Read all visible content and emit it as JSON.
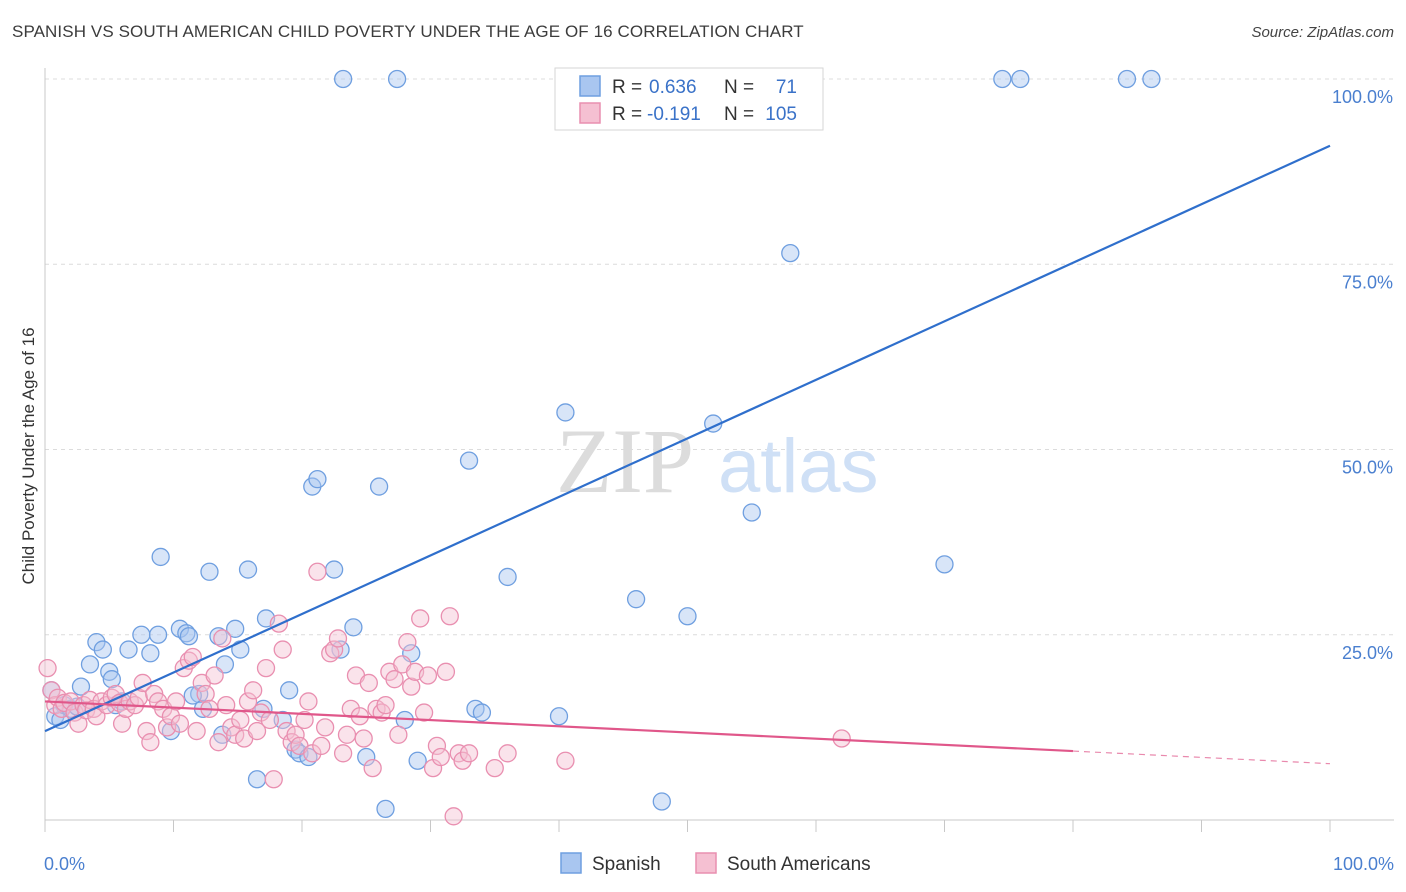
{
  "chart_data": {
    "type": "scatter",
    "title": "SPANISH VS SOUTH AMERICAN CHILD POVERTY UNDER THE AGE OF 16 CORRELATION CHART",
    "source": "Source: ZipAtlas.com",
    "watermark": {
      "zip": "ZIP",
      "atlas": "atlas"
    },
    "xlabel": "",
    "ylabel": "Child Poverty Under the Age of 16",
    "xlim": [
      0,
      100
    ],
    "ylim": [
      0,
      100
    ],
    "x_tick_labels": {
      "min": "0.0%",
      "max": "100.0%"
    },
    "y_ticks": [
      {
        "value": 100,
        "label": "100.0%"
      },
      {
        "value": 75,
        "label": "75.0%"
      },
      {
        "value": 50,
        "label": "50.0%"
      },
      {
        "value": 25,
        "label": "25.0%"
      }
    ],
    "legend": {
      "position": "top-center",
      "rows": [
        {
          "series": "Spanish",
          "r_label": "R =",
          "r_value": "0.636",
          "n_label": "N =",
          "n_value": "71"
        },
        {
          "series": "South Americans",
          "r_label": "R =",
          "r_value": "-0.191",
          "n_label": "N =",
          "n_value": "105"
        }
      ]
    },
    "series": [
      {
        "name": "Spanish",
        "color": "#6f9fe0",
        "fill": "#a9c6f0",
        "trend_color": "#2f6fcc",
        "trend": {
          "x0": 0,
          "y0": 12.0,
          "x1": 100,
          "y1": 91.0
        },
        "points": [
          [
            0.5,
            17.5
          ],
          [
            0.8,
            14
          ],
          [
            1.2,
            13.5
          ],
          [
            1.5,
            15.5
          ],
          [
            2,
            15
          ],
          [
            2.5,
            15.3
          ],
          [
            2.8,
            18
          ],
          [
            3.5,
            21
          ],
          [
            4,
            24
          ],
          [
            4.5,
            23
          ],
          [
            5,
            20
          ],
          [
            5.2,
            19
          ],
          [
            5.5,
            15.5
          ],
          [
            6,
            16
          ],
          [
            6.5,
            23
          ],
          [
            7.5,
            25
          ],
          [
            8.2,
            22.5
          ],
          [
            8.8,
            25
          ],
          [
            9,
            35.5
          ],
          [
            9.8,
            12
          ],
          [
            10.5,
            25.8
          ],
          [
            11,
            25.2
          ],
          [
            11.2,
            24.8
          ],
          [
            12,
            17
          ],
          [
            12.3,
            15
          ],
          [
            12.8,
            33.5
          ],
          [
            13.5,
            24.8
          ],
          [
            13.8,
            11.5
          ],
          [
            14,
            21
          ],
          [
            14.8,
            25.8
          ],
          [
            15.2,
            23
          ],
          [
            15.8,
            33.8
          ],
          [
            16.5,
            5.5
          ],
          [
            17,
            15
          ],
          [
            17.2,
            27.2
          ],
          [
            18.5,
            13.5
          ],
          [
            19,
            17.5
          ],
          [
            19.5,
            9.5
          ],
          [
            19.8,
            9
          ],
          [
            20.5,
            8.5
          ],
          [
            20.8,
            45
          ],
          [
            21.2,
            46
          ],
          [
            22.5,
            33.8
          ],
          [
            23,
            23
          ],
          [
            24,
            26
          ],
          [
            25,
            8.5
          ],
          [
            26,
            45
          ],
          [
            26.5,
            1.5
          ],
          [
            28,
            13.5
          ],
          [
            28.5,
            22.5
          ],
          [
            29,
            8
          ],
          [
            33,
            48.5
          ],
          [
            33.5,
            15
          ],
          [
            34,
            14.5
          ],
          [
            36,
            32.8
          ],
          [
            40,
            14
          ],
          [
            40.5,
            55
          ],
          [
            46,
            29.8
          ],
          [
            48,
            2.5
          ],
          [
            50,
            27.5
          ],
          [
            52,
            53.5
          ],
          [
            55,
            41.5
          ],
          [
            58,
            76.5
          ],
          [
            70,
            34.5
          ],
          [
            23.2,
            100
          ],
          [
            27.4,
            100
          ],
          [
            74.5,
            100
          ],
          [
            75.9,
            100
          ],
          [
            84.2,
            100
          ],
          [
            86.1,
            100
          ],
          [
            11.5,
            16.8
          ]
        ]
      },
      {
        "name": "South Americans",
        "color": "#e98fb0",
        "fill": "#f5c0d2",
        "trend_color": "#e0578a",
        "trend": {
          "x0": 0,
          "y0": 16.0,
          "x1": 80,
          "y1": 9.3,
          "dashed_to_x": 100,
          "dashed_to_y": 7.6
        },
        "points": [
          [
            0.2,
            20.5
          ],
          [
            0.5,
            17.5
          ],
          [
            0.8,
            15.5
          ],
          [
            1,
            16.5
          ],
          [
            1.3,
            15
          ],
          [
            1.5,
            15.8
          ],
          [
            2,
            16
          ],
          [
            2.3,
            14.5
          ],
          [
            2.6,
            13
          ],
          [
            3,
            15.5
          ],
          [
            3.2,
            14.8
          ],
          [
            3.5,
            16.2
          ],
          [
            3.8,
            15
          ],
          [
            4,
            14
          ],
          [
            4.4,
            16
          ],
          [
            4.8,
            15.5
          ],
          [
            5.2,
            16.5
          ],
          [
            5.5,
            17
          ],
          [
            5.8,
            15.8
          ],
          [
            6,
            13
          ],
          [
            6.3,
            15
          ],
          [
            6.6,
            16
          ],
          [
            7,
            15.5
          ],
          [
            7.3,
            16.5
          ],
          [
            7.6,
            18.5
          ],
          [
            7.9,
            12
          ],
          [
            8.2,
            10.5
          ],
          [
            8.5,
            17
          ],
          [
            8.8,
            16
          ],
          [
            9.2,
            15
          ],
          [
            9.5,
            12.5
          ],
          [
            9.8,
            14
          ],
          [
            10.2,
            16
          ],
          [
            10.5,
            13
          ],
          [
            10.8,
            20.5
          ],
          [
            11.2,
            21.5
          ],
          [
            11.5,
            22
          ],
          [
            11.8,
            12
          ],
          [
            12.2,
            18.5
          ],
          [
            12.5,
            17
          ],
          [
            12.8,
            15
          ],
          [
            13.2,
            19.5
          ],
          [
            13.5,
            10.5
          ],
          [
            13.8,
            24.5
          ],
          [
            14.1,
            15.5
          ],
          [
            14.5,
            12.5
          ],
          [
            14.8,
            11.5
          ],
          [
            15.2,
            13.5
          ],
          [
            15.5,
            11
          ],
          [
            15.8,
            16
          ],
          [
            16.2,
            17.5
          ],
          [
            16.5,
            12
          ],
          [
            16.8,
            14.5
          ],
          [
            17.2,
            20.5
          ],
          [
            17.5,
            13.5
          ],
          [
            17.8,
            5.5
          ],
          [
            18.2,
            26.5
          ],
          [
            18.5,
            23
          ],
          [
            18.8,
            12
          ],
          [
            19.2,
            10.5
          ],
          [
            19.5,
            11.5
          ],
          [
            19.8,
            10
          ],
          [
            20.2,
            13.5
          ],
          [
            20.5,
            16
          ],
          [
            20.8,
            9
          ],
          [
            21.2,
            33.5
          ],
          [
            21.5,
            10
          ],
          [
            21.8,
            12.5
          ],
          [
            22.2,
            22.5
          ],
          [
            22.5,
            23
          ],
          [
            22.8,
            24.5
          ],
          [
            23.2,
            9
          ],
          [
            23.5,
            11.5
          ],
          [
            23.8,
            15
          ],
          [
            24.2,
            19.5
          ],
          [
            24.5,
            14
          ],
          [
            24.8,
            11
          ],
          [
            25.2,
            18.5
          ],
          [
            25.5,
            7
          ],
          [
            25.8,
            15
          ],
          [
            26.2,
            14.5
          ],
          [
            26.5,
            15.5
          ],
          [
            26.8,
            20
          ],
          [
            27.2,
            19
          ],
          [
            27.5,
            11.5
          ],
          [
            27.8,
            21
          ],
          [
            28.2,
            24
          ],
          [
            28.5,
            18
          ],
          [
            28.8,
            20
          ],
          [
            29.2,
            27.2
          ],
          [
            29.5,
            14.5
          ],
          [
            29.8,
            19.5
          ],
          [
            30.2,
            7
          ],
          [
            30.5,
            10
          ],
          [
            30.8,
            8.5
          ],
          [
            31.2,
            20
          ],
          [
            31.5,
            27.5
          ],
          [
            31.8,
            0.5
          ],
          [
            32.2,
            9
          ],
          [
            32.5,
            8
          ],
          [
            33,
            9
          ],
          [
            35,
            7
          ],
          [
            36,
            9
          ],
          [
            40.5,
            8
          ],
          [
            62,
            11
          ]
        ]
      }
    ],
    "bottom_legend": [
      {
        "series": "Spanish",
        "label": "Spanish"
      },
      {
        "series": "South Americans",
        "label": "South Americans"
      }
    ]
  }
}
